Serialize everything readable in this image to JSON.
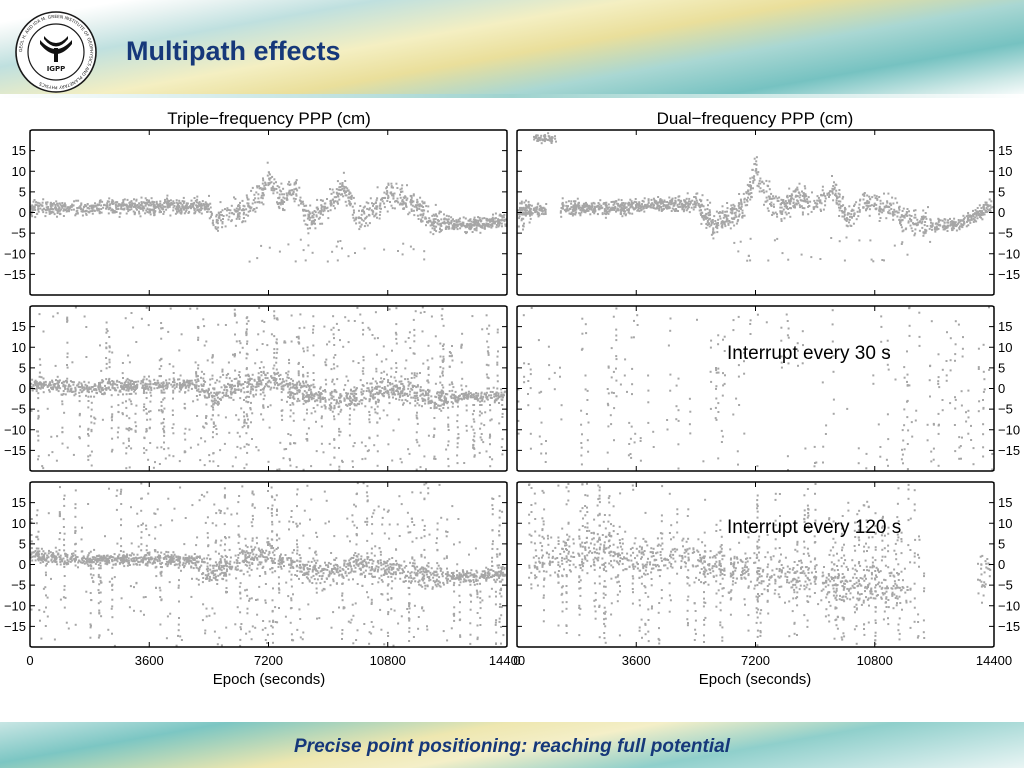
{
  "slide": {
    "title": "Multipath effects",
    "footer": "Precise point positioning: reaching full potential",
    "logo": {
      "ring_text": "GEOL H. AND IDA M. GREEN INSTITUTE OF GEOPHYSICS AND PLANETARY PHYSICS",
      "center_text": "IGPP"
    },
    "colors": {
      "title": "#16387a",
      "points": "#a6a6a6",
      "axes": "#000000"
    }
  },
  "chart_data": {
    "type": "scatter",
    "column_titles": [
      "Triple−frequency PPP (cm)",
      "Dual−frequency PPP (cm)"
    ],
    "xlabel": "Epoch (seconds)",
    "xlim": [
      0,
      14400
    ],
    "ylim": [
      -20,
      20
    ],
    "x_ticks": [
      0,
      3600,
      7200,
      10800,
      14400
    ],
    "x_tick_labels": [
      "0",
      "3600",
      "7200",
      "10800",
      "14400"
    ],
    "y_ticks": [
      -15,
      -10,
      -5,
      0,
      5,
      10,
      15
    ],
    "y_tick_labels": [
      "−15",
      "−10",
      "−5",
      "0",
      "5",
      "10",
      "15"
    ],
    "annotations": [
      "Interrupt every 30 s",
      "Interrupt every 120 s"
    ],
    "grid": false,
    "panels": [
      {
        "row": 0,
        "col": 0,
        "series": [
          {
            "trend": [
              [
                0,
                1
              ],
              [
                1800,
                1
              ],
              [
                3600,
                1.5
              ],
              [
                5400,
                1.5
              ],
              [
                5550,
                -2
              ],
              [
                6600,
                1
              ],
              [
                7000,
                5
              ],
              [
                7200,
                8
              ],
              [
                7600,
                3
              ],
              [
                8000,
                6
              ],
              [
                8400,
                -2
              ],
              [
                9000,
                2
              ],
              [
                9500,
                6
              ],
              [
                9900,
                -2
              ],
              [
                10400,
                1
              ],
              [
                10900,
                5
              ],
              [
                11600,
                2
              ],
              [
                12200,
                -2
              ],
              [
                13200,
                -3
              ],
              [
                14400,
                -2
              ]
            ]
          }
        ]
      },
      {
        "row": 0,
        "col": 1,
        "series": [
          {
            "trend": [
              [
                0,
                0
              ],
              [
                1300,
                1
              ],
              [
                2500,
                1
              ],
              [
                4500,
                2
              ],
              [
                5500,
                2
              ],
              [
                5900,
                -3
              ],
              [
                6800,
                1
              ],
              [
                7000,
                5
              ],
              [
                7200,
                10
              ],
              [
                7500,
                4
              ],
              [
                8000,
                1
              ],
              [
                8500,
                4
              ],
              [
                9000,
                2
              ],
              [
                9500,
                6
              ],
              [
                10000,
                -2
              ],
              [
                10500,
                3
              ],
              [
                11200,
                1
              ],
              [
                12000,
                -3
              ],
              [
                13300,
                -3
              ],
              [
                14400,
                2
              ]
            ],
            "gap": [
              900,
              1300
            ],
            "start_burst": {
              "x": [
                500,
                1200
              ],
              "y": 18
            }
          }
        ]
      },
      {
        "row": 1,
        "col": 0,
        "series": [
          {
            "trend": [
              [
                0,
                1
              ],
              [
                1800,
                0
              ],
              [
                3600,
                1
              ],
              [
                5200,
                1
              ],
              [
                5500,
                -2
              ],
              [
                6400,
                1
              ],
              [
                7300,
                2
              ],
              [
                8000,
                0
              ],
              [
                9000,
                -3
              ],
              [
                10300,
                -1
              ],
              [
                11000,
                0
              ],
              [
                12300,
                -3
              ],
              [
                13300,
                -2
              ],
              [
                14400,
                -2
              ]
            ]
          }
        ]
      },
      {
        "row": 1,
        "col": 1,
        "series": [
          {
            "trend": []
          }
        ]
      },
      {
        "row": 2,
        "col": 0,
        "series": [
          {
            "trend": [
              [
                0,
                2
              ],
              [
                900,
                1.5
              ],
              [
                1800,
                1
              ],
              [
                3600,
                1.5
              ],
              [
                5100,
                1
              ],
              [
                5400,
                -2
              ],
              [
                6200,
                0
              ],
              [
                7200,
                3
              ],
              [
                8000,
                -1
              ],
              [
                9000,
                -2
              ],
              [
                9800,
                0
              ],
              [
                10400,
                -1
              ],
              [
                11000,
                -1
              ],
              [
                11800,
                -3
              ],
              [
                13200,
                -3
              ],
              [
                14400,
                -2
              ]
            ]
          }
        ]
      },
      {
        "row": 2,
        "col": 1,
        "series": [
          {
            "trend": [
              [
                500,
                0
              ],
              [
                1500,
                3
              ],
              [
                2500,
                4
              ],
              [
                3300,
                1
              ],
              [
                4200,
                2
              ],
              [
                5300,
                1
              ],
              [
                6400,
                -1
              ],
              [
                8000,
                -2
              ],
              [
                9500,
                -4
              ],
              [
                11500,
                -6
              ]
            ]
          }
        ]
      }
    ]
  }
}
